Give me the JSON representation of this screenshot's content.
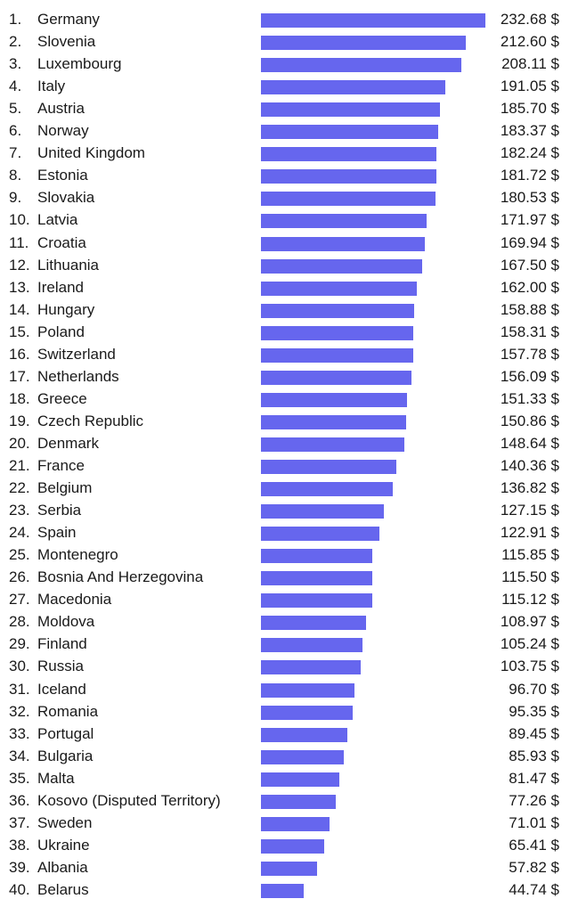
{
  "chart_data": {
    "type": "bar",
    "orientation": "horizontal",
    "value_suffix": " $",
    "bar_color": "#6666ee",
    "xlim": [
      0,
      232.68
    ],
    "rows": [
      {
        "rank": "1.",
        "country": "Germany",
        "value": 232.68,
        "label": "232.68 $"
      },
      {
        "rank": "2.",
        "country": "Slovenia",
        "value": 212.6,
        "label": "212.60 $"
      },
      {
        "rank": "3.",
        "country": "Luxembourg",
        "value": 208.11,
        "label": "208.11 $"
      },
      {
        "rank": "4.",
        "country": "Italy",
        "value": 191.05,
        "label": "191.05 $"
      },
      {
        "rank": "5.",
        "country": "Austria",
        "value": 185.7,
        "label": "185.70 $"
      },
      {
        "rank": "6.",
        "country": "Norway",
        "value": 183.37,
        "label": "183.37 $"
      },
      {
        "rank": "7.",
        "country": "United Kingdom",
        "value": 182.24,
        "label": "182.24 $"
      },
      {
        "rank": "8.",
        "country": "Estonia",
        "value": 181.72,
        "label": "181.72 $"
      },
      {
        "rank": "9.",
        "country": "Slovakia",
        "value": 180.53,
        "label": "180.53 $"
      },
      {
        "rank": "10.",
        "country": "Latvia",
        "value": 171.97,
        "label": "171.97 $"
      },
      {
        "rank": "11.",
        "country": "Croatia",
        "value": 169.94,
        "label": "169.94 $"
      },
      {
        "rank": "12.",
        "country": "Lithuania",
        "value": 167.5,
        "label": "167.50 $"
      },
      {
        "rank": "13.",
        "country": "Ireland",
        "value": 162.0,
        "label": "162.00 $"
      },
      {
        "rank": "14.",
        "country": "Hungary",
        "value": 158.88,
        "label": "158.88 $"
      },
      {
        "rank": "15.",
        "country": "Poland",
        "value": 158.31,
        "label": "158.31 $"
      },
      {
        "rank": "16.",
        "country": "Switzerland",
        "value": 157.78,
        "label": "157.78 $"
      },
      {
        "rank": "17.",
        "country": "Netherlands",
        "value": 156.09,
        "label": "156.09 $"
      },
      {
        "rank": "18.",
        "country": "Greece",
        "value": 151.33,
        "label": "151.33 $"
      },
      {
        "rank": "19.",
        "country": "Czech Republic",
        "value": 150.86,
        "label": "150.86 $"
      },
      {
        "rank": "20.",
        "country": "Denmark",
        "value": 148.64,
        "label": "148.64 $"
      },
      {
        "rank": "21.",
        "country": "France",
        "value": 140.36,
        "label": "140.36 $"
      },
      {
        "rank": "22.",
        "country": "Belgium",
        "value": 136.82,
        "label": "136.82 $"
      },
      {
        "rank": "23.",
        "country": "Serbia",
        "value": 127.15,
        "label": "127.15 $"
      },
      {
        "rank": "24.",
        "country": "Spain",
        "value": 122.91,
        "label": "122.91 $"
      },
      {
        "rank": "25.",
        "country": "Montenegro",
        "value": 115.85,
        "label": "115.85 $"
      },
      {
        "rank": "26.",
        "country": "Bosnia And Herzegovina",
        "value": 115.5,
        "label": "115.50 $"
      },
      {
        "rank": "27.",
        "country": "Macedonia",
        "value": 115.12,
        "label": "115.12 $"
      },
      {
        "rank": "28.",
        "country": "Moldova",
        "value": 108.97,
        "label": "108.97 $"
      },
      {
        "rank": "29.",
        "country": "Finland",
        "value": 105.24,
        "label": "105.24 $"
      },
      {
        "rank": "30.",
        "country": "Russia",
        "value": 103.75,
        "label": "103.75 $"
      },
      {
        "rank": "31.",
        "country": "Iceland",
        "value": 96.7,
        "label": "96.70 $"
      },
      {
        "rank": "32.",
        "country": "Romania",
        "value": 95.35,
        "label": "95.35 $"
      },
      {
        "rank": "33.",
        "country": "Portugal",
        "value": 89.45,
        "label": "89.45 $"
      },
      {
        "rank": "34.",
        "country": "Bulgaria",
        "value": 85.93,
        "label": "85.93 $"
      },
      {
        "rank": "35.",
        "country": "Malta",
        "value": 81.47,
        "label": "81.47 $"
      },
      {
        "rank": "36.",
        "country": "Kosovo (Disputed Territory)",
        "value": 77.26,
        "label": "77.26 $"
      },
      {
        "rank": "37.",
        "country": "Sweden",
        "value": 71.01,
        "label": "71.01 $"
      },
      {
        "rank": "38.",
        "country": "Ukraine",
        "value": 65.41,
        "label": "65.41 $"
      },
      {
        "rank": "39.",
        "country": "Albania",
        "value": 57.82,
        "label": "57.82 $"
      },
      {
        "rank": "40.",
        "country": "Belarus",
        "value": 44.74,
        "label": "44.74 $"
      }
    ]
  }
}
